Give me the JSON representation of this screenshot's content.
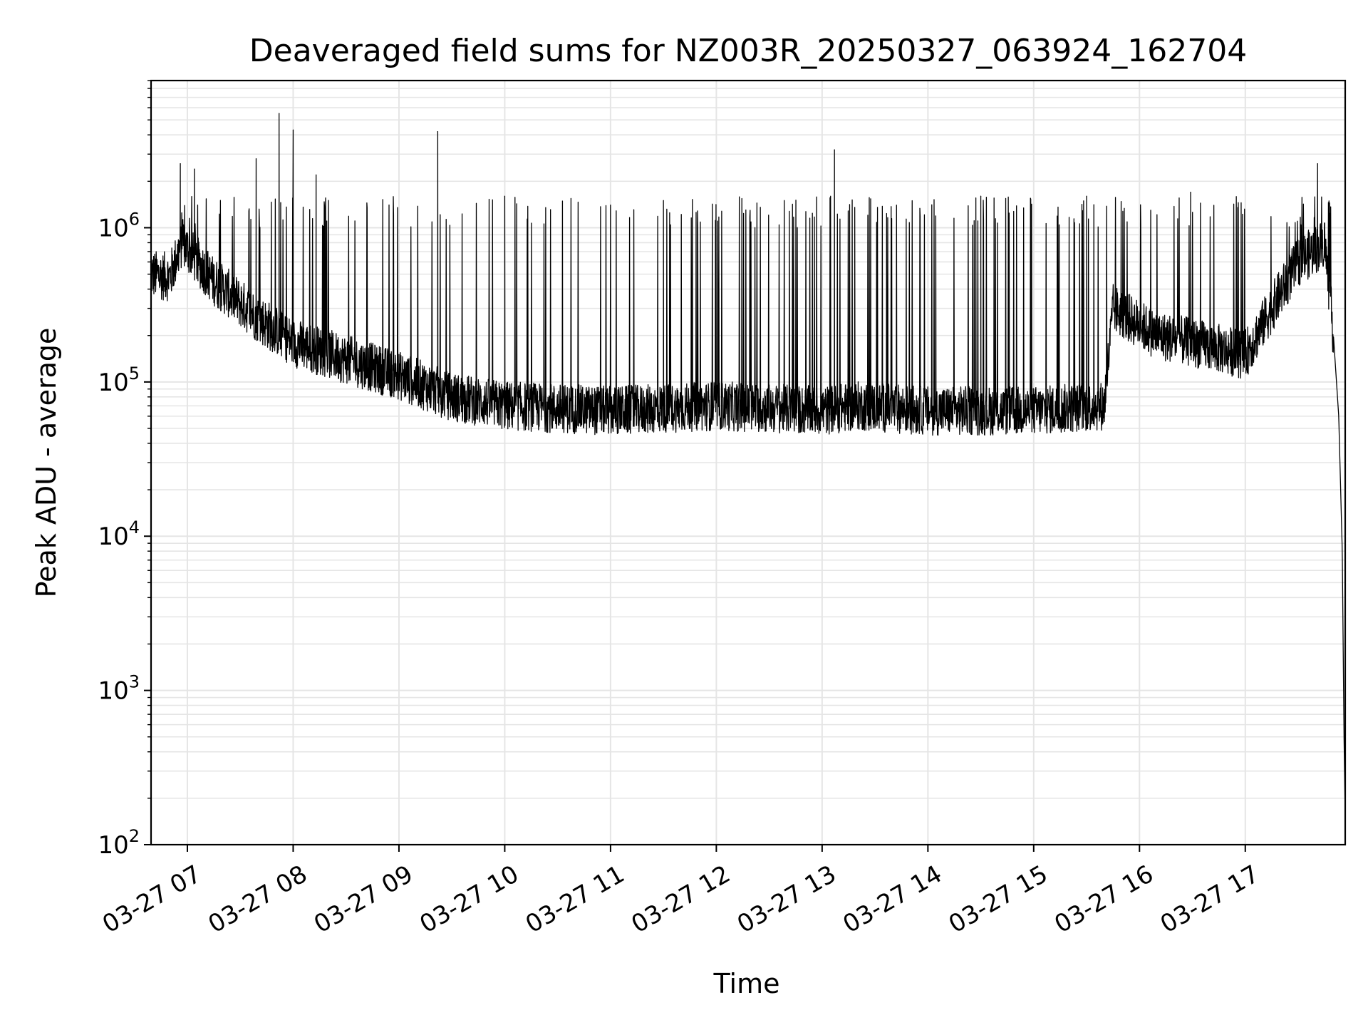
{
  "chart_data": {
    "type": "line",
    "title": "Deaveraged field sums for NZ003R_20250327_063924_162704",
    "xlabel": "Time",
    "ylabel": "Peak ADU - average",
    "yscale": "log",
    "ylim": [
      100,
      9000000
    ],
    "xlim": [
      "2025-03-27 06:39:24",
      "2025-03-27 17:56:40"
    ],
    "grid": true,
    "grid_color": "#e5e5e5",
    "line_color": "#000000",
    "x_ticks": [
      {
        "value": "2025-03-27 07:00",
        "label": "03-27 07"
      },
      {
        "value": "2025-03-27 08:00",
        "label": "03-27 08"
      },
      {
        "value": "2025-03-27 09:00",
        "label": "03-27 09"
      },
      {
        "value": "2025-03-27 10:00",
        "label": "03-27 10"
      },
      {
        "value": "2025-03-27 11:00",
        "label": "03-27 11"
      },
      {
        "value": "2025-03-27 12:00",
        "label": "03-27 12"
      },
      {
        "value": "2025-03-27 13:00",
        "label": "03-27 13"
      },
      {
        "value": "2025-03-27 14:00",
        "label": "03-27 14"
      },
      {
        "value": "2025-03-27 15:00",
        "label": "03-27 15"
      },
      {
        "value": "2025-03-27 16:00",
        "label": "03-27 16"
      },
      {
        "value": "2025-03-27 17:00",
        "label": "03-27 17"
      }
    ],
    "y_ticks": [
      {
        "value": 100,
        "base": "10",
        "exp": "2"
      },
      {
        "value": 1000,
        "base": "10",
        "exp": "3"
      },
      {
        "value": 10000,
        "base": "10",
        "exp": "4"
      },
      {
        "value": 100000,
        "base": "10",
        "exp": "5"
      },
      {
        "value": 1000000,
        "base": "10",
        "exp": "6"
      }
    ],
    "series": [
      {
        "baseline": [
          [
            "2025-03-27 06:39",
            500000
          ],
          [
            "2025-03-27 06:50",
            480000
          ],
          [
            "2025-03-27 06:57",
            800000
          ],
          [
            "2025-03-27 07:15",
            450000
          ],
          [
            "2025-03-27 07:40",
            260000
          ],
          [
            "2025-03-27 08:00",
            180000
          ],
          [
            "2025-03-27 08:30",
            140000
          ],
          [
            "2025-03-27 09:00",
            110000
          ],
          [
            "2025-03-27 09:30",
            80000
          ],
          [
            "2025-03-27 10:00",
            70000
          ],
          [
            "2025-03-27 11:00",
            65000
          ],
          [
            "2025-03-27 12:00",
            70000
          ],
          [
            "2025-03-27 13:00",
            65000
          ],
          [
            "2025-03-27 13:20",
            70000
          ],
          [
            "2025-03-27 14:00",
            65000
          ],
          [
            "2025-03-27 15:00",
            65000
          ],
          [
            "2025-03-27 15:40",
            70000
          ],
          [
            "2025-03-27 15:45",
            300000
          ],
          [
            "2025-03-27 16:10",
            200000
          ],
          [
            "2025-03-27 16:30",
            180000
          ],
          [
            "2025-03-27 17:00",
            150000
          ],
          [
            "2025-03-27 17:30",
            600000
          ],
          [
            "2025-03-27 17:45",
            800000
          ],
          [
            "2025-03-27 17:50",
            200000
          ],
          [
            "2025-03-27 17:53",
            60000
          ],
          [
            "2025-03-27 17:55",
            8000
          ],
          [
            "2025-03-27 17:56",
            500
          ],
          [
            "2025-03-27 17:56:40",
            150
          ]
        ],
        "peaks": [
          [
            "2025-03-27 06:56",
            2600000
          ],
          [
            "2025-03-27 07:04",
            2400000
          ],
          [
            "2025-03-27 07:39",
            2800000
          ],
          [
            "2025-03-27 07:52",
            5500000
          ],
          [
            "2025-03-27 08:00",
            4300000
          ],
          [
            "2025-03-27 08:13",
            2200000
          ],
          [
            "2025-03-27 09:22",
            4200000
          ],
          [
            "2025-03-27 10:00",
            1600000
          ],
          [
            "2025-03-27 11:30",
            1500000
          ],
          [
            "2025-03-27 13:07",
            3200000
          ],
          [
            "2025-03-27 14:30",
            1600000
          ],
          [
            "2025-03-27 15:30",
            1600000
          ],
          [
            "2025-03-27 16:29",
            1700000
          ],
          [
            "2025-03-27 17:41",
            2600000
          ]
        ]
      }
    ]
  }
}
